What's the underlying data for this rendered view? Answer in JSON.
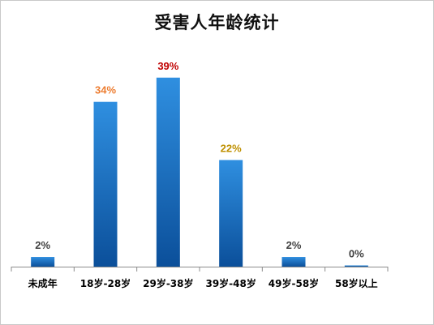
{
  "chart_data": {
    "type": "bar",
    "title": "受害人年龄统计",
    "categories": [
      "未成年",
      "18岁-28岁",
      "29岁-38岁",
      "39岁-48岁",
      "49岁-58岁",
      "58岁以上"
    ],
    "values": [
      2,
      34,
      39,
      22,
      2,
      0
    ],
    "data_labels": [
      "2%",
      "34%",
      "39%",
      "22%",
      "2%",
      "0%"
    ],
    "label_colors": [
      "#404040",
      "#ed7d31",
      "#c00000",
      "#bf9000",
      "#404040",
      "#404040"
    ],
    "bar_color_top": "#2f8fe0",
    "bar_color_bottom": "#0b4f9a",
    "xlabel": "",
    "ylabel": "",
    "ylim": [
      0,
      45
    ],
    "grid": false,
    "legend": "none"
  }
}
